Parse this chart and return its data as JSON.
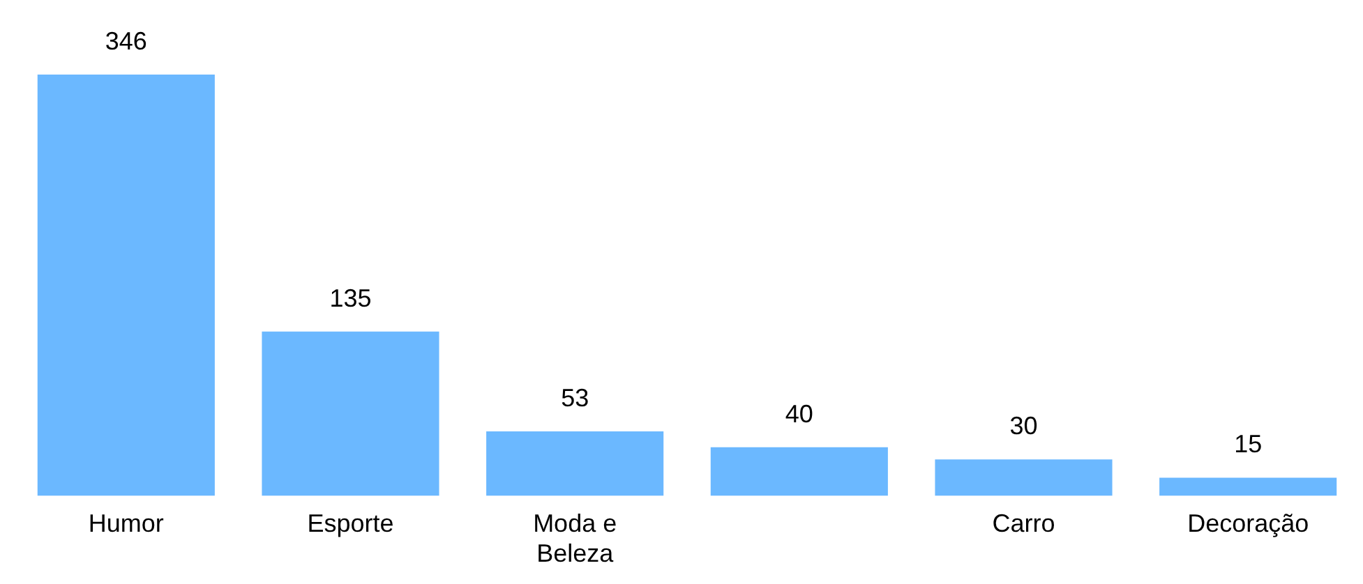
{
  "chart_data": {
    "type": "bar",
    "categories": [
      "Humor",
      "Esporte",
      "Moda e Beleza",
      null,
      "Carro",
      "Decoração"
    ],
    "values": [
      346,
      135,
      53,
      40,
      30,
      15
    ],
    "color": "#6bb8ff",
    "relative": false,
    "data_labels": true,
    "grid": false,
    "legend": false
  }
}
